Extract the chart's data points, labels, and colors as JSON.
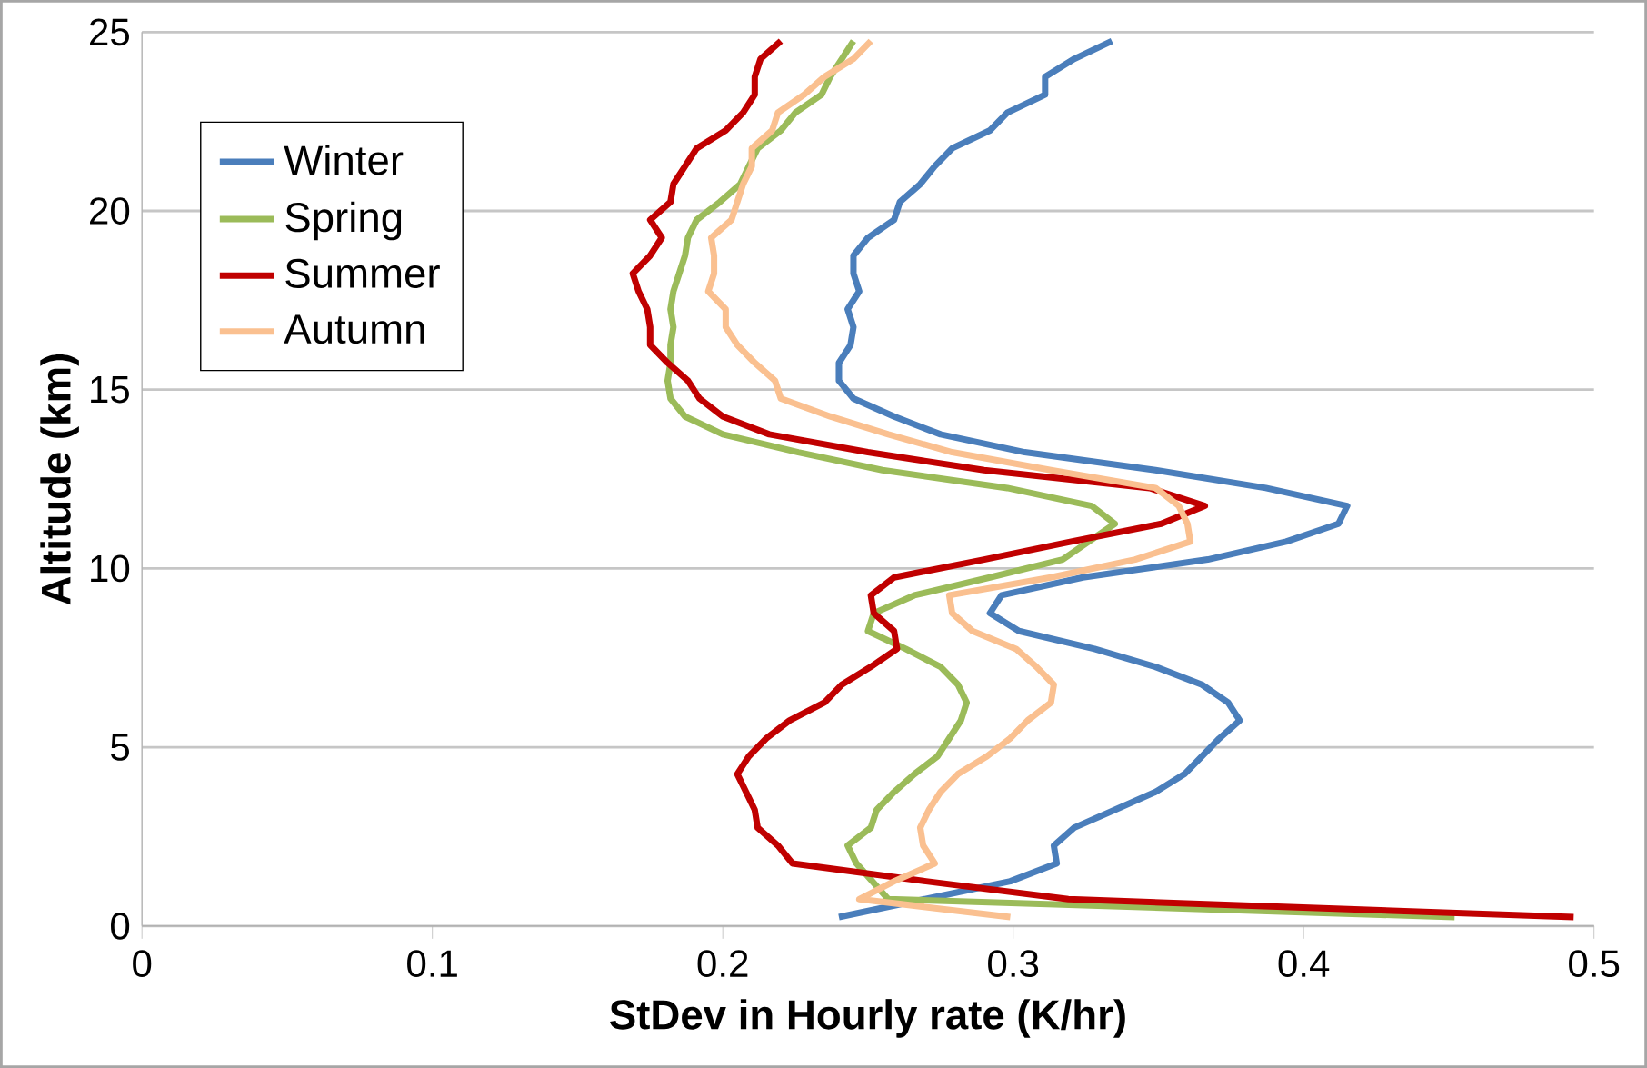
{
  "chart_data": {
    "type": "line",
    "xlabel": "StDev in Hourly rate (K/hr)",
    "ylabel": "Altitude (km)",
    "xlim": [
      0,
      0.5
    ],
    "xticks": [
      0,
      0.1,
      0.2,
      0.3,
      0.4,
      0.5
    ],
    "ylim": [
      0,
      25
    ],
    "yticks": [
      0,
      5,
      10,
      15,
      20,
      25
    ],
    "grid": "y",
    "legend": "top left",
    "marker": "none",
    "line_style": "solid",
    "series": [
      {
        "name": "Winter",
        "color": "#4a7ebb",
        "x": [
          0.24,
          0.299,
          0.315,
          0.314,
          0.321,
          0.335,
          0.349,
          0.359,
          0.365,
          0.371,
          0.378,
          0.374,
          0.365,
          0.349,
          0.328,
          0.302,
          0.292,
          0.296,
          0.324,
          0.367,
          0.394,
          0.412,
          0.415,
          0.387,
          0.349,
          0.304,
          0.275,
          0.259,
          0.245,
          0.24,
          0.24,
          0.244,
          0.245,
          0.243,
          0.247,
          0.245,
          0.245,
          0.25,
          0.259,
          0.261,
          0.268,
          0.273,
          0.279,
          0.292,
          0.298,
          0.311,
          0.311,
          0.321,
          0.334
        ],
        "values": [
          0.25,
          1.25,
          1.75,
          2.25,
          2.75,
          3.25,
          3.75,
          4.25,
          4.75,
          5.25,
          5.75,
          6.25,
          6.75,
          7.25,
          7.75,
          8.25,
          8.75,
          9.25,
          9.75,
          10.25,
          10.75,
          11.25,
          11.75,
          12.25,
          12.75,
          13.25,
          13.75,
          14.25,
          14.75,
          15.25,
          15.75,
          16.25,
          16.75,
          17.25,
          17.75,
          18.25,
          18.75,
          19.25,
          19.75,
          20.25,
          20.75,
          21.25,
          21.75,
          22.25,
          22.75,
          23.25,
          23.75,
          24.25,
          24.75
        ]
      },
      {
        "name": "Spring",
        "color": "#9bbb59",
        "x": [
          0.452,
          0.257,
          0.246,
          0.243,
          0.251,
          0.253,
          0.259,
          0.266,
          0.274,
          0.278,
          0.282,
          0.284,
          0.281,
          0.275,
          0.263,
          0.25,
          0.252,
          0.266,
          0.292,
          0.317,
          0.326,
          0.335,
          0.327,
          0.298,
          0.255,
          0.226,
          0.2,
          0.187,
          0.182,
          0.181,
          0.182,
          0.182,
          0.183,
          0.182,
          0.183,
          0.185,
          0.187,
          0.188,
          0.191,
          0.199,
          0.206,
          0.209,
          0.212,
          0.22,
          0.225,
          0.234,
          0.237,
          0.241,
          0.245
        ],
        "values": [
          0.25,
          0.75,
          1.75,
          2.25,
          2.75,
          3.25,
          3.75,
          4.25,
          4.75,
          5.25,
          5.75,
          6.25,
          6.75,
          7.25,
          7.75,
          8.25,
          8.75,
          9.25,
          9.75,
          10.25,
          10.75,
          11.25,
          11.75,
          12.25,
          12.75,
          13.25,
          13.75,
          14.25,
          14.75,
          15.25,
          15.75,
          16.25,
          16.75,
          17.25,
          17.75,
          18.25,
          18.75,
          19.25,
          19.75,
          20.25,
          20.75,
          21.25,
          21.75,
          22.25,
          22.75,
          23.25,
          23.75,
          24.25,
          24.75
        ]
      },
      {
        "name": "Summer",
        "color": "#c00000",
        "x": [
          0.493,
          0.319,
          0.27,
          0.224,
          0.219,
          0.212,
          0.211,
          0.208,
          0.205,
          0.209,
          0.215,
          0.223,
          0.235,
          0.241,
          0.251,
          0.26,
          0.259,
          0.252,
          0.251,
          0.259,
          0.29,
          0.32,
          0.351,
          0.366,
          0.347,
          0.29,
          0.25,
          0.216,
          0.2,
          0.192,
          0.188,
          0.181,
          0.175,
          0.175,
          0.174,
          0.171,
          0.169,
          0.175,
          0.179,
          0.175,
          0.182,
          0.183,
          0.187,
          0.191,
          0.201,
          0.207,
          0.211,
          0.211,
          0.213,
          0.22
        ],
        "values": [
          0.25,
          0.75,
          1.25,
          1.75,
          2.25,
          2.75,
          3.25,
          3.75,
          4.25,
          4.75,
          5.25,
          5.75,
          6.25,
          6.75,
          7.25,
          7.75,
          8.25,
          8.75,
          9.25,
          9.75,
          10.25,
          10.75,
          11.25,
          11.75,
          12.25,
          12.75,
          13.25,
          13.75,
          14.25,
          14.75,
          15.25,
          15.75,
          16.25,
          16.75,
          17.25,
          17.75,
          18.25,
          18.75,
          19.25,
          19.75,
          20.25,
          20.75,
          21.25,
          21.75,
          22.25,
          22.75,
          23.25,
          23.75,
          24.25,
          24.75
        ]
      },
      {
        "name": "Autumn",
        "color": "#fac090",
        "x": [
          0.299,
          0.247,
          0.259,
          0.273,
          0.269,
          0.268,
          0.271,
          0.275,
          0.281,
          0.291,
          0.299,
          0.305,
          0.313,
          0.314,
          0.308,
          0.301,
          0.286,
          0.279,
          0.278,
          0.313,
          0.342,
          0.361,
          0.36,
          0.357,
          0.349,
          0.313,
          0.279,
          0.257,
          0.237,
          0.22,
          0.218,
          0.211,
          0.205,
          0.201,
          0.201,
          0.195,
          0.197,
          0.197,
          0.196,
          0.203,
          0.205,
          0.207,
          0.21,
          0.21,
          0.217,
          0.219,
          0.228,
          0.235,
          0.245,
          0.251
        ],
        "values": [
          0.25,
          0.75,
          1.25,
          1.75,
          2.25,
          2.75,
          3.25,
          3.75,
          4.25,
          4.75,
          5.25,
          5.75,
          6.25,
          6.75,
          7.25,
          7.75,
          8.25,
          8.75,
          9.25,
          9.75,
          10.25,
          10.75,
          11.25,
          11.75,
          12.25,
          12.75,
          13.25,
          13.75,
          14.25,
          14.75,
          15.25,
          15.75,
          16.25,
          16.75,
          17.25,
          17.75,
          18.25,
          18.75,
          19.25,
          19.75,
          20.25,
          20.75,
          21.25,
          21.75,
          22.25,
          22.75,
          23.25,
          23.75,
          24.25,
          24.75
        ]
      }
    ]
  }
}
